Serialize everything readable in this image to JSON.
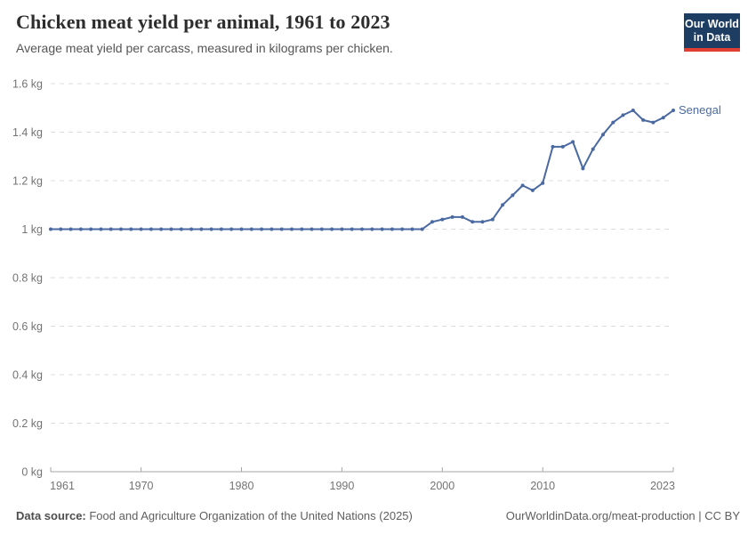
{
  "header": {
    "title": "Chicken meat yield per animal, 1961 to 2023",
    "subtitle": "Average meat yield per carcass, measured in kilograms per chicken."
  },
  "logo": {
    "line1": "Our World",
    "line2": "in Data"
  },
  "colors": {
    "line": "#4a69a1",
    "series_label": "#4c6a9c",
    "grid": "#dcdcdc",
    "axis": "#a5a5a5",
    "tick_text": "#737373",
    "logo_navy": "#1d3d63",
    "logo_red": "#e23d33"
  },
  "chart_data": {
    "type": "line",
    "title": "Chicken meat yield per animal, 1961 to 2023",
    "xlabel": "",
    "ylabel": "",
    "ylim": [
      0,
      1.6
    ],
    "grid": "dashed-horizontal",
    "legend_position": "end-of-line-label",
    "y_ticks": [
      {
        "value": 0.0,
        "label": "0 kg"
      },
      {
        "value": 0.2,
        "label": "0.2 kg"
      },
      {
        "value": 0.4,
        "label": "0.4 kg"
      },
      {
        "value": 0.6,
        "label": "0.6 kg"
      },
      {
        "value": 0.8,
        "label": "0.8 kg"
      },
      {
        "value": 1.0,
        "label": "1 kg"
      },
      {
        "value": 1.2,
        "label": "1.2 kg"
      },
      {
        "value": 1.4,
        "label": "1.4 kg"
      },
      {
        "value": 1.6,
        "label": "1.6 kg"
      }
    ],
    "x_ticks": [
      1961,
      1970,
      1980,
      1990,
      2000,
      2010,
      2023
    ],
    "x": [
      1961,
      1962,
      1963,
      1964,
      1965,
      1966,
      1967,
      1968,
      1969,
      1970,
      1971,
      1972,
      1973,
      1974,
      1975,
      1976,
      1977,
      1978,
      1979,
      1980,
      1981,
      1982,
      1983,
      1984,
      1985,
      1986,
      1987,
      1988,
      1989,
      1990,
      1991,
      1992,
      1993,
      1994,
      1995,
      1996,
      1997,
      1998,
      1999,
      2000,
      2001,
      2002,
      2003,
      2004,
      2005,
      2006,
      2007,
      2008,
      2009,
      2010,
      2011,
      2012,
      2013,
      2014,
      2015,
      2016,
      2017,
      2018,
      2019,
      2020,
      2021,
      2022,
      2023
    ],
    "series": [
      {
        "name": "Senegal",
        "values": [
          1.0,
          1.0,
          1.0,
          1.0,
          1.0,
          1.0,
          1.0,
          1.0,
          1.0,
          1.0,
          1.0,
          1.0,
          1.0,
          1.0,
          1.0,
          1.0,
          1.0,
          1.0,
          1.0,
          1.0,
          1.0,
          1.0,
          1.0,
          1.0,
          1.0,
          1.0,
          1.0,
          1.0,
          1.0,
          1.0,
          1.0,
          1.0,
          1.0,
          1.0,
          1.0,
          1.0,
          1.0,
          1.0,
          1.03,
          1.04,
          1.05,
          1.05,
          1.03,
          1.03,
          1.04,
          1.1,
          1.14,
          1.18,
          1.16,
          1.19,
          1.34,
          1.34,
          1.36,
          1.25,
          1.33,
          1.39,
          1.44,
          1.47,
          1.49,
          1.45,
          1.44,
          1.46,
          1.49
        ]
      }
    ]
  },
  "footer": {
    "datasource_label": "Data source:",
    "datasource_text": " Food and Agriculture Organization of the United Nations (2025)",
    "right_text": "OurWorldinData.org/meat-production | CC BY"
  }
}
